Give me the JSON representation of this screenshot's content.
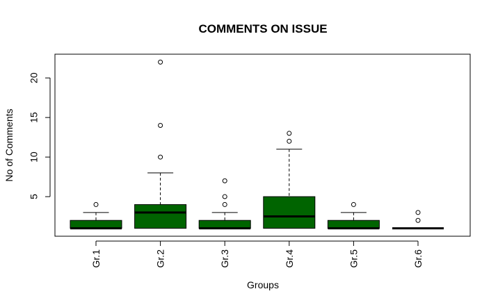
{
  "chart_data": {
    "type": "boxplot",
    "title": "COMMENTS ON ISSUE",
    "xlabel": "Groups",
    "ylabel": "No of Comments",
    "ylim": [
      0,
      23
    ],
    "yticks": [
      5,
      10,
      15,
      20
    ],
    "grid": false,
    "legend": "none",
    "colors": {
      "box_fill": "#006400",
      "median": "#000000",
      "frame": "#000000"
    },
    "categories": [
      "Gr.1",
      "Gr.2",
      "Gr.3",
      "Gr.4",
      "Gr.5",
      "Gr.6"
    ],
    "boxes": [
      {
        "name": "Gr.1",
        "whisker_low": 1,
        "q1": 1,
        "median": 1,
        "q3": 2,
        "whisker_high": 3,
        "outliers": [
          4
        ]
      },
      {
        "name": "Gr.2",
        "whisker_low": 1,
        "q1": 1,
        "median": 3,
        "q3": 4,
        "whisker_high": 8,
        "outliers": [
          10,
          14,
          22
        ]
      },
      {
        "name": "Gr.3",
        "whisker_low": 1,
        "q1": 1,
        "median": 1,
        "q3": 2,
        "whisker_high": 3,
        "outliers": [
          4,
          5,
          7
        ]
      },
      {
        "name": "Gr.4",
        "whisker_low": 1,
        "q1": 1,
        "median": 2.5,
        "q3": 5,
        "whisker_high": 11,
        "outliers": [
          12,
          13
        ]
      },
      {
        "name": "Gr.5",
        "whisker_low": 1,
        "q1": 1,
        "median": 1,
        "q3": 2,
        "whisker_high": 3,
        "outliers": [
          4
        ]
      },
      {
        "name": "Gr.6",
        "whisker_low": 1,
        "q1": 1,
        "median": 1,
        "q3": 1,
        "whisker_high": 1,
        "outliers": [
          2,
          3
        ]
      }
    ]
  }
}
